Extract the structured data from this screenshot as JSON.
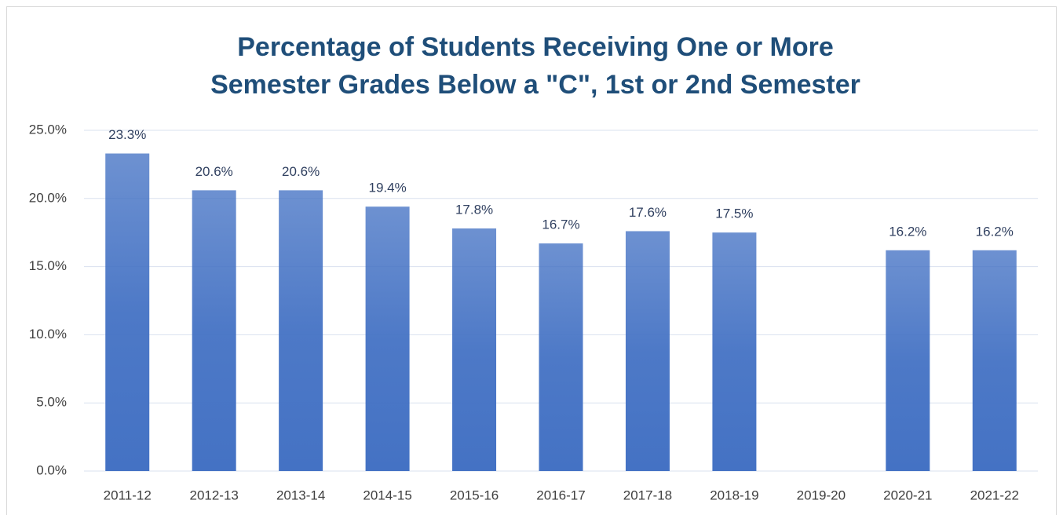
{
  "chart_data": {
    "type": "bar",
    "title": [
      "Percentage of Students Receiving One or More",
      "Semester Grades Below a \"C\", 1st or 2nd Semester"
    ],
    "categories": [
      "2011-12",
      "2012-13",
      "2013-14",
      "2014-15",
      "2015-16",
      "2016-17",
      "2017-18",
      "2018-19",
      "2019-20",
      "2020-21",
      "2021-22"
    ],
    "values": [
      23.3,
      20.6,
      20.6,
      19.4,
      17.8,
      16.7,
      17.6,
      17.5,
      null,
      16.2,
      16.2
    ],
    "value_labels": [
      "23.3%",
      "20.6%",
      "20.6%",
      "19.4%",
      "17.8%",
      "16.7%",
      "17.6%",
      "17.5%",
      null,
      "16.2%",
      "16.2%"
    ],
    "color": "#4472c4",
    "ylim": [
      0,
      25
    ],
    "yticks": [
      {
        "value": 0,
        "label": "0.0%"
      },
      {
        "value": 5,
        "label": "5.0%"
      },
      {
        "value": 10,
        "label": "10.0%"
      },
      {
        "value": 15,
        "label": "15.0%"
      },
      {
        "value": 20,
        "label": "20.0%"
      },
      {
        "value": 25,
        "label": "25.0%"
      }
    ],
    "grid": true
  }
}
